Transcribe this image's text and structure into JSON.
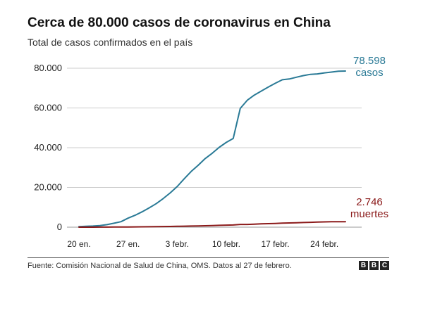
{
  "chart_data": {
    "type": "line",
    "title": "Cerca de 80.000 casos de coronavirus en China",
    "subtitle": "Total de casos confirmados en el país",
    "xlabel": "",
    "ylabel": "",
    "x": [
      "20 en.",
      "21 en.",
      "22 en.",
      "23 en.",
      "24 en.",
      "25 en.",
      "26 en.",
      "27 en.",
      "28 en.",
      "29 en.",
      "30 en.",
      "31 en.",
      "1 febr.",
      "2 febr.",
      "3 febr.",
      "4 febr.",
      "5 febr.",
      "6 febr.",
      "7 febr.",
      "8 febr.",
      "9 febr.",
      "10 febr.",
      "11 febr.",
      "12 febr.",
      "13 febr.",
      "14 febr.",
      "15 febr.",
      "16 febr.",
      "17 febr.",
      "18 febr.",
      "19 febr.",
      "20 febr.",
      "21 febr.",
      "22 febr.",
      "23 febr.",
      "24 febr.",
      "25 febr.",
      "26 febr.",
      "27 febr."
    ],
    "x_ticks": [
      "20 en.",
      "27 en.",
      "3 febr.",
      "10 febr.",
      "17 febr.",
      "24 febr."
    ],
    "x_tick_index": [
      0,
      7,
      14,
      21,
      28,
      35
    ],
    "y_ticks": [
      "80.000",
      "60.000",
      "40.000",
      "20.000",
      "0"
    ],
    "y_tick_values": [
      80000,
      60000,
      40000,
      20000,
      0
    ],
    "ylim": [
      0,
      80000
    ],
    "grid": true,
    "series": [
      {
        "name": "casos",
        "color": "#2a7a96",
        "label_value": "78.598",
        "label_text": "casos",
        "values": [
          291,
          440,
          571,
          830,
          1287,
          1975,
          2744,
          4515,
          5974,
          7711,
          9692,
          11791,
          14380,
          17205,
          20438,
          24324,
          28018,
          31161,
          34546,
          37198,
          40171,
          42638,
          44653,
          59804,
          63851,
          66492,
          68500,
          70548,
          72436,
          74185,
          74576,
          75465,
          76288,
          76936,
          77150,
          77658,
          78064,
          78497,
          78598
        ]
      },
      {
        "name": "muertes",
        "color": "#8b1a1a",
        "label_value": "2.746",
        "label_text": "muertes",
        "values": [
          6,
          9,
          17,
          25,
          41,
          56,
          80,
          106,
          132,
          170,
          213,
          259,
          304,
          361,
          425,
          490,
          563,
          636,
          722,
          811,
          908,
          1016,
          1113,
          1368,
          1380,
          1523,
          1665,
          1770,
          1868,
          2004,
          2118,
          2236,
          2345,
          2442,
          2592,
          2663,
          2715,
          2744,
          2746
        ]
      }
    ]
  },
  "footer": {
    "source": "Fuente: Comisión Nacional de Salud de China, OMS. Datos al 27 de febrero.",
    "logo_letters": [
      "B",
      "B",
      "C"
    ]
  },
  "colors": {
    "grid": "#cccccc",
    "axis_text": "#222222"
  }
}
